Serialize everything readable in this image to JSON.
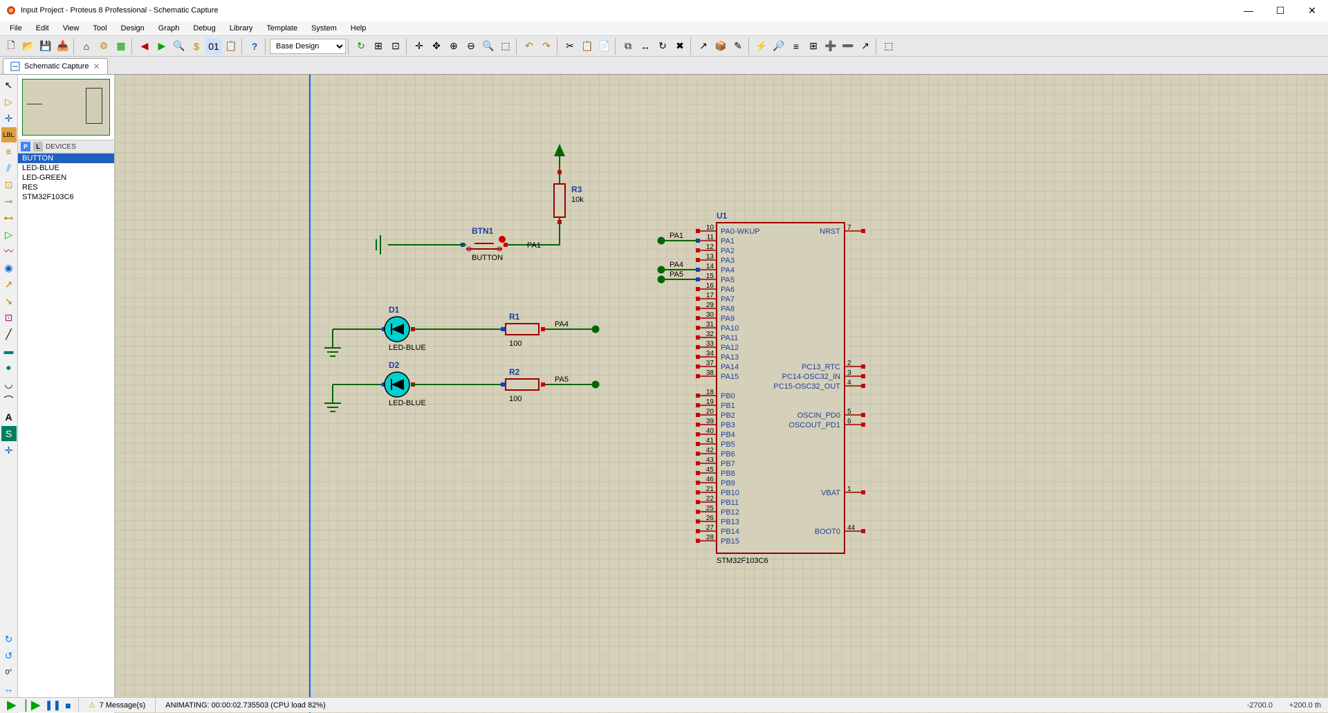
{
  "title": "Input Project - Proteus 8 Professional - Schematic Capture",
  "menu": [
    "File",
    "Edit",
    "View",
    "Tool",
    "Design",
    "Graph",
    "Debug",
    "Library",
    "Template",
    "System",
    "Help"
  ],
  "design_dropdown": "Base Design",
  "tab": "Schematic Capture",
  "devices_header": "DEVICES",
  "devices": [
    "BUTTON",
    "LED-BLUE",
    "LED-GREEN",
    "RES",
    "STM32F103C6"
  ],
  "angle": "0°",
  "status": {
    "messages": "7 Message(s)",
    "anim": "ANIMATING: 00:00:02.735503 (CPU load 82%)",
    "coord1": "-2700.0",
    "coord2": "+200.0 th"
  },
  "chip": {
    "ref": "U1",
    "part": "STM32F103C6",
    "left_pins": [
      {
        "n": "10",
        "name": "PA0-WKUP"
      },
      {
        "n": "11",
        "name": "PA1"
      },
      {
        "n": "12",
        "name": "PA2"
      },
      {
        "n": "13",
        "name": "PA3"
      },
      {
        "n": "14",
        "name": "PA4"
      },
      {
        "n": "15",
        "name": "PA5"
      },
      {
        "n": "16",
        "name": "PA6"
      },
      {
        "n": "17",
        "name": "PA7"
      },
      {
        "n": "29",
        "name": "PA8"
      },
      {
        "n": "30",
        "name": "PA9"
      },
      {
        "n": "31",
        "name": "PA10"
      },
      {
        "n": "32",
        "name": "PA11"
      },
      {
        "n": "33",
        "name": "PA12"
      },
      {
        "n": "34",
        "name": "PA13"
      },
      {
        "n": "37",
        "name": "PA14"
      },
      {
        "n": "38",
        "name": "PA15"
      },
      {
        "n": "18",
        "name": "PB0"
      },
      {
        "n": "19",
        "name": "PB1"
      },
      {
        "n": "20",
        "name": "PB2"
      },
      {
        "n": "39",
        "name": "PB3"
      },
      {
        "n": "40",
        "name": "PB4"
      },
      {
        "n": "41",
        "name": "PB5"
      },
      {
        "n": "42",
        "name": "PB6"
      },
      {
        "n": "43",
        "name": "PB7"
      },
      {
        "n": "45",
        "name": "PB8"
      },
      {
        "n": "46",
        "name": "PB9"
      },
      {
        "n": "21",
        "name": "PB10"
      },
      {
        "n": "22",
        "name": "PB11"
      },
      {
        "n": "25",
        "name": "PB12"
      },
      {
        "n": "26",
        "name": "PB13"
      },
      {
        "n": "27",
        "name": "PB14"
      },
      {
        "n": "28",
        "name": "PB15"
      }
    ],
    "right_pins": [
      {
        "n": "7",
        "name": "NRST",
        "row": 0
      },
      {
        "n": "2",
        "name": "PC13_RTC",
        "row": 14
      },
      {
        "n": "3",
        "name": "PC14-OSC32_IN",
        "row": 15
      },
      {
        "n": "4",
        "name": "PC15-OSC32_OUT",
        "row": 16
      },
      {
        "n": "5",
        "name": "OSCIN_PD0",
        "row": 19
      },
      {
        "n": "6",
        "name": "OSCOUT_PD1",
        "row": 20
      },
      {
        "n": "1",
        "name": "VBAT",
        "row": 27
      },
      {
        "n": "44",
        "name": "BOOT0",
        "row": 31
      }
    ]
  },
  "components": {
    "btn": {
      "ref": "BTN1",
      "part": "BUTTON",
      "net": "PA1"
    },
    "r3": {
      "ref": "R3",
      "val": "10k"
    },
    "d1": {
      "ref": "D1",
      "part": "LED-BLUE"
    },
    "d2": {
      "ref": "D2",
      "part": "LED-BLUE"
    },
    "r1": {
      "ref": "R1",
      "val": "100",
      "net": "PA4"
    },
    "r2": {
      "ref": "R2",
      "val": "100",
      "net": "PA5"
    }
  },
  "nets": {
    "pa1": "PA1",
    "pa4": "PA4",
    "pa5": "PA5"
  },
  "style": {
    "wire_color": "#006600",
    "chip_stroke": "#990000",
    "label_color": "#2040a0",
    "canvas_bg": "#D5D0B9",
    "grid_color": "#C8C2A8",
    "led_color": "#00d0d0"
  }
}
